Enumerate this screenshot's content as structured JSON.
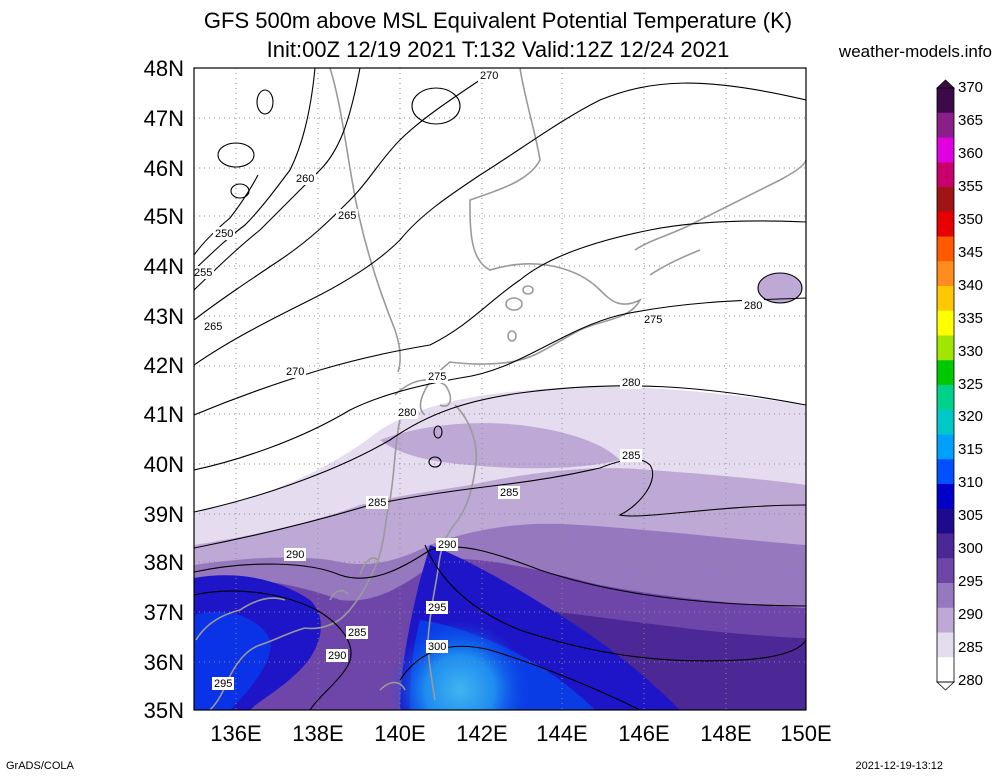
{
  "header": {
    "title_line1": "GFS 500m above MSL Equivalent Potential Temperature (K)",
    "title_line2": "Init:00Z 12/19 2021 T:132 Valid:12Z 12/24 2021",
    "site": "weather-models.info"
  },
  "axes": {
    "lat_labels": [
      "48N",
      "47N",
      "46N",
      "45N",
      "44N",
      "43N",
      "42N",
      "41N",
      "40N",
      "39N",
      "38N",
      "37N",
      "36N",
      "35N"
    ],
    "lon_labels": [
      "136E",
      "138E",
      "140E",
      "142E",
      "144E",
      "146E",
      "148E",
      "150E"
    ]
  },
  "colorbar": {
    "labels": [
      "370",
      "365",
      "360",
      "355",
      "350",
      "345",
      "340",
      "335",
      "330",
      "325",
      "320",
      "315",
      "310",
      "305",
      "300",
      "295",
      "290",
      "285",
      "280"
    ],
    "colors": [
      "#3c0a4a",
      "#8a1f8a",
      "#e000e0",
      "#c8006e",
      "#a01414",
      "#e60000",
      "#ff5a00",
      "#ff8c1e",
      "#ffc800",
      "#ffff00",
      "#a0e600",
      "#00c800",
      "#00d28c",
      "#00c8c8",
      "#00a0ff",
      "#0050ff",
      "#0000c8",
      "#1e0a8c",
      "#4b2896",
      "#6e46aa",
      "#9678be",
      "#bea8d6",
      "#e6dcf0",
      "#ffffff"
    ]
  },
  "contour_labels": [
    "270",
    "260",
    "265",
    "250",
    "255",
    "265",
    "270",
    "275",
    "275",
    "280",
    "280",
    "285",
    "285",
    "290",
    "290",
    "285",
    "295",
    "290",
    "295",
    "300",
    "280",
    "285"
  ],
  "footer": {
    "credit": "GrADS/COLA",
    "timestamp": "2021-12-19-13:12"
  }
}
